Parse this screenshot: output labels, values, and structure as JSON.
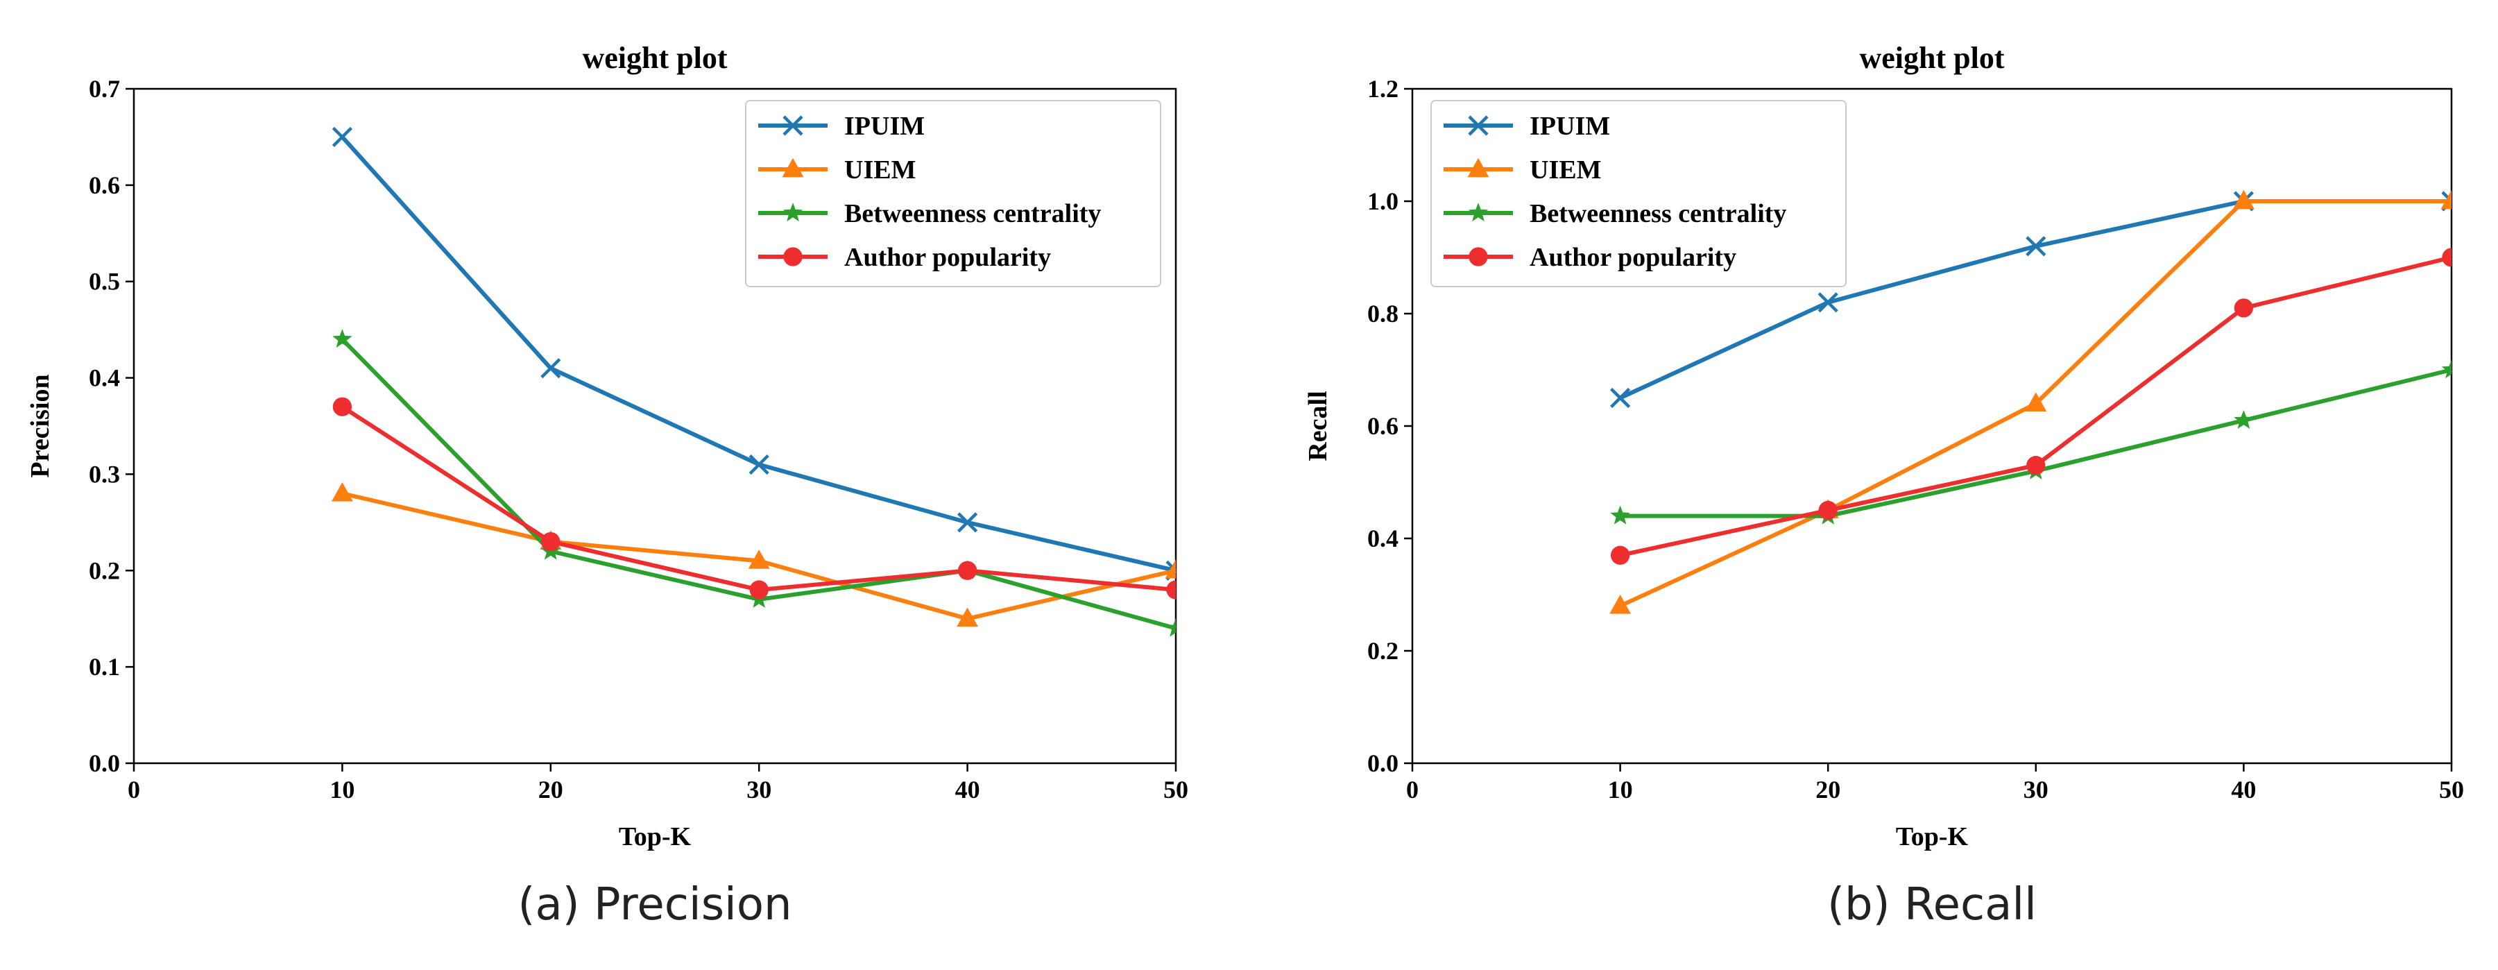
{
  "chart_data": [
    {
      "type": "line",
      "title": "weight plot",
      "xlabel": "Top-K",
      "ylabel": "Precision",
      "caption": "(a) Precision",
      "xlim": [
        0,
        50
      ],
      "ylim": [
        0,
        0.7
      ],
      "xticks": [
        "0",
        "10",
        "20",
        "30",
        "40",
        "50"
      ],
      "yticks": [
        "0.0",
        "0.1",
        "0.2",
        "0.3",
        "0.4",
        "0.5",
        "0.6",
        "0.7"
      ],
      "legend_position": "top-right",
      "x": [
        10,
        20,
        30,
        40,
        50
      ],
      "series": [
        {
          "name": "IPUIM",
          "color": "#1f77b4",
          "marker": "x",
          "values": [
            0.65,
            0.41,
            0.31,
            0.25,
            0.2
          ]
        },
        {
          "name": "UIEM",
          "color": "#ff7f0e",
          "marker": "triangle",
          "values": [
            0.28,
            0.23,
            0.21,
            0.15,
            0.2
          ]
        },
        {
          "name": "Betweenness centrality",
          "color": "#2ca02c",
          "marker": "star",
          "values": [
            0.44,
            0.22,
            0.17,
            0.2,
            0.14
          ]
        },
        {
          "name": "Author popularity",
          "color": "#ee2e2e",
          "marker": "circle",
          "values": [
            0.37,
            0.23,
            0.18,
            0.2,
            0.18
          ]
        }
      ]
    },
    {
      "type": "line",
      "title": "weight plot",
      "xlabel": "Top-K",
      "ylabel": "Recall",
      "caption": "(b) Recall",
      "xlim": [
        0,
        50
      ],
      "ylim": [
        0,
        1.2
      ],
      "xticks": [
        "0",
        "10",
        "20",
        "30",
        "40",
        "50"
      ],
      "yticks": [
        "0.0",
        "0.2",
        "0.4",
        "0.6",
        "0.8",
        "1.0",
        "1.2"
      ],
      "legend_position": "top-left",
      "x": [
        10,
        20,
        30,
        40,
        50
      ],
      "series": [
        {
          "name": "IPUIM",
          "color": "#1f77b4",
          "marker": "x",
          "values": [
            0.65,
            0.82,
            0.92,
            1.0,
            1.0
          ]
        },
        {
          "name": "UIEM",
          "color": "#ff7f0e",
          "marker": "triangle",
          "values": [
            0.28,
            0.45,
            0.64,
            1.0,
            1.0
          ]
        },
        {
          "name": "Betweenness centrality",
          "color": "#2ca02c",
          "marker": "star",
          "values": [
            0.44,
            0.44,
            0.52,
            0.61,
            0.7
          ]
        },
        {
          "name": "Author popularity",
          "color": "#ee2e2e",
          "marker": "circle",
          "values": [
            0.37,
            0.45,
            0.53,
            0.81,
            0.9
          ]
        }
      ]
    }
  ]
}
